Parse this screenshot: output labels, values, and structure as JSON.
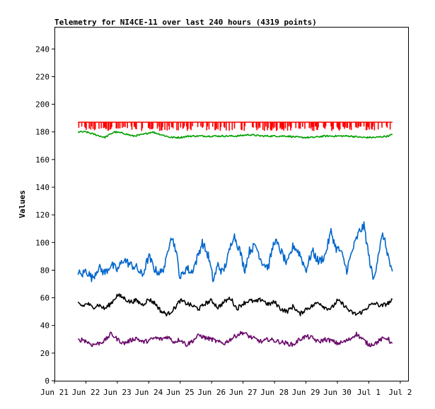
{
  "chart_data": {
    "type": "line",
    "title": "Telemetry for NI4CE-11 over last 240 hours (4319 points)",
    "xlabel": "",
    "ylabel": "Values",
    "x_ticks": [
      "Jun 21",
      "Jun 22",
      "Jun 23",
      "Jun 24",
      "Jun 25",
      "Jun 26",
      "Jun 27",
      "Jun 28",
      "Jun 29",
      "Jun 30",
      "Jul 1",
      "Jul 2"
    ],
    "y_ticks": [
      0,
      20,
      40,
      60,
      80,
      100,
      120,
      140,
      160,
      180,
      200,
      220,
      240
    ],
    "xlim": [
      0,
      11.25
    ],
    "ylim": [
      0,
      256
    ],
    "grid": false,
    "legend": "none",
    "series": [
      {
        "color": "#ff0000",
        "style": "spiky",
        "x": [
          0.75,
          1.0,
          1.5,
          2.0,
          2.5,
          3.0,
          3.5,
          4.0,
          4.5,
          5.0,
          5.5,
          6.0,
          6.5,
          7.0,
          7.5,
          8.0,
          8.5,
          9.0,
          9.5,
          10.0,
          10.5,
          10.75
        ],
        "values": [
          187,
          187,
          187,
          187,
          187,
          187,
          187,
          187,
          187,
          187,
          187,
          187,
          187,
          187,
          187,
          187,
          187,
          187,
          187,
          187,
          187,
          187
        ],
        "dip_to": 181
      },
      {
        "color": "#00a000",
        "x": [
          0.75,
          1.0,
          1.3,
          1.6,
          1.9,
          2.2,
          2.5,
          2.8,
          3.1,
          3.4,
          3.7,
          4.0,
          4.3,
          4.6,
          5.0,
          5.4,
          5.8,
          6.2,
          6.6,
          7.0,
          7.4,
          7.8,
          8.2,
          8.6,
          9.0,
          9.4,
          9.8,
          10.2,
          10.6,
          10.75
        ],
        "values": [
          180,
          180,
          178,
          176,
          180,
          179,
          177,
          178,
          180,
          178,
          176,
          176,
          177,
          177,
          177,
          177,
          177,
          178,
          177,
          177,
          177,
          176,
          176,
          177,
          177,
          177,
          176,
          176,
          177,
          178
        ]
      },
      {
        "color": "#0066cc",
        "x": [
          0.75,
          0.85,
          1.0,
          1.2,
          1.4,
          1.6,
          1.8,
          2.0,
          2.2,
          2.4,
          2.6,
          2.8,
          3.0,
          3.2,
          3.4,
          3.55,
          3.7,
          3.85,
          4.0,
          4.2,
          4.35,
          4.5,
          4.7,
          4.9,
          5.05,
          5.2,
          5.35,
          5.5,
          5.7,
          5.9,
          6.05,
          6.2,
          6.4,
          6.6,
          6.8,
          7.0,
          7.2,
          7.4,
          7.6,
          7.8,
          8.0,
          8.2,
          8.4,
          8.6,
          8.8,
          8.95,
          9.1,
          9.3,
          9.5,
          9.7,
          9.85,
          10.0,
          10.15,
          10.3,
          10.45,
          10.6,
          10.75
        ],
        "values": [
          79,
          76,
          80,
          74,
          82,
          78,
          84,
          80,
          88,
          84,
          82,
          76,
          90,
          80,
          78,
          86,
          106,
          96,
          74,
          82,
          78,
          86,
          100,
          90,
          72,
          84,
          78,
          88,
          106,
          94,
          80,
          94,
          98,
          86,
          82,
          102,
          94,
          84,
          98,
          92,
          80,
          94,
          86,
          90,
          108,
          96,
          94,
          80,
          96,
          108,
          112,
          90,
          72,
          92,
          106,
          92,
          76
        ]
      },
      {
        "color": "#000000",
        "x": [
          0.75,
          0.9,
          1.05,
          1.2,
          1.4,
          1.6,
          1.8,
          2.0,
          2.2,
          2.4,
          2.6,
          2.8,
          3.0,
          3.2,
          3.4,
          3.6,
          3.8,
          4.0,
          4.2,
          4.4,
          4.6,
          4.8,
          5.0,
          5.2,
          5.4,
          5.6,
          5.8,
          6.0,
          6.2,
          6.4,
          6.6,
          6.8,
          7.0,
          7.2,
          7.4,
          7.6,
          7.8,
          8.0,
          8.2,
          8.4,
          8.6,
          8.8,
          9.0,
          9.2,
          9.4,
          9.6,
          9.8,
          10.0,
          10.2,
          10.4,
          10.6,
          10.75
        ],
        "values": [
          56,
          54,
          56,
          53,
          55,
          52,
          56,
          62,
          60,
          57,
          58,
          55,
          59,
          56,
          50,
          48,
          52,
          58,
          56,
          54,
          52,
          56,
          58,
          53,
          57,
          60,
          52,
          56,
          58,
          57,
          59,
          55,
          57,
          52,
          50,
          54,
          48,
          52,
          54,
          57,
          53,
          52,
          58,
          55,
          50,
          48,
          50,
          54,
          56,
          54,
          56,
          58
        ]
      },
      {
        "color": "#6a0a6a",
        "x": [
          0.75,
          0.9,
          1.05,
          1.2,
          1.4,
          1.6,
          1.8,
          2.0,
          2.2,
          2.4,
          2.6,
          2.8,
          3.0,
          3.2,
          3.4,
          3.6,
          3.8,
          4.0,
          4.2,
          4.4,
          4.6,
          4.8,
          5.0,
          5.2,
          5.4,
          5.6,
          5.8,
          6.0,
          6.2,
          6.4,
          6.6,
          6.8,
          7.0,
          7.2,
          7.4,
          7.6,
          7.8,
          8.0,
          8.2,
          8.4,
          8.6,
          8.8,
          9.0,
          9.2,
          9.4,
          9.6,
          9.8,
          10.0,
          10.2,
          10.4,
          10.6,
          10.75
        ],
        "values": [
          29,
          30,
          28,
          26,
          27,
          29,
          34,
          30,
          27,
          29,
          31,
          28,
          29,
          31,
          30,
          32,
          28,
          30,
          26,
          29,
          33,
          31,
          30,
          28,
          27,
          30,
          33,
          35,
          32,
          30,
          28,
          30,
          29,
          28,
          27,
          26,
          30,
          32,
          31,
          28,
          30,
          29,
          27,
          28,
          30,
          34,
          30,
          26,
          27,
          30,
          31,
          26
        ]
      }
    ]
  }
}
